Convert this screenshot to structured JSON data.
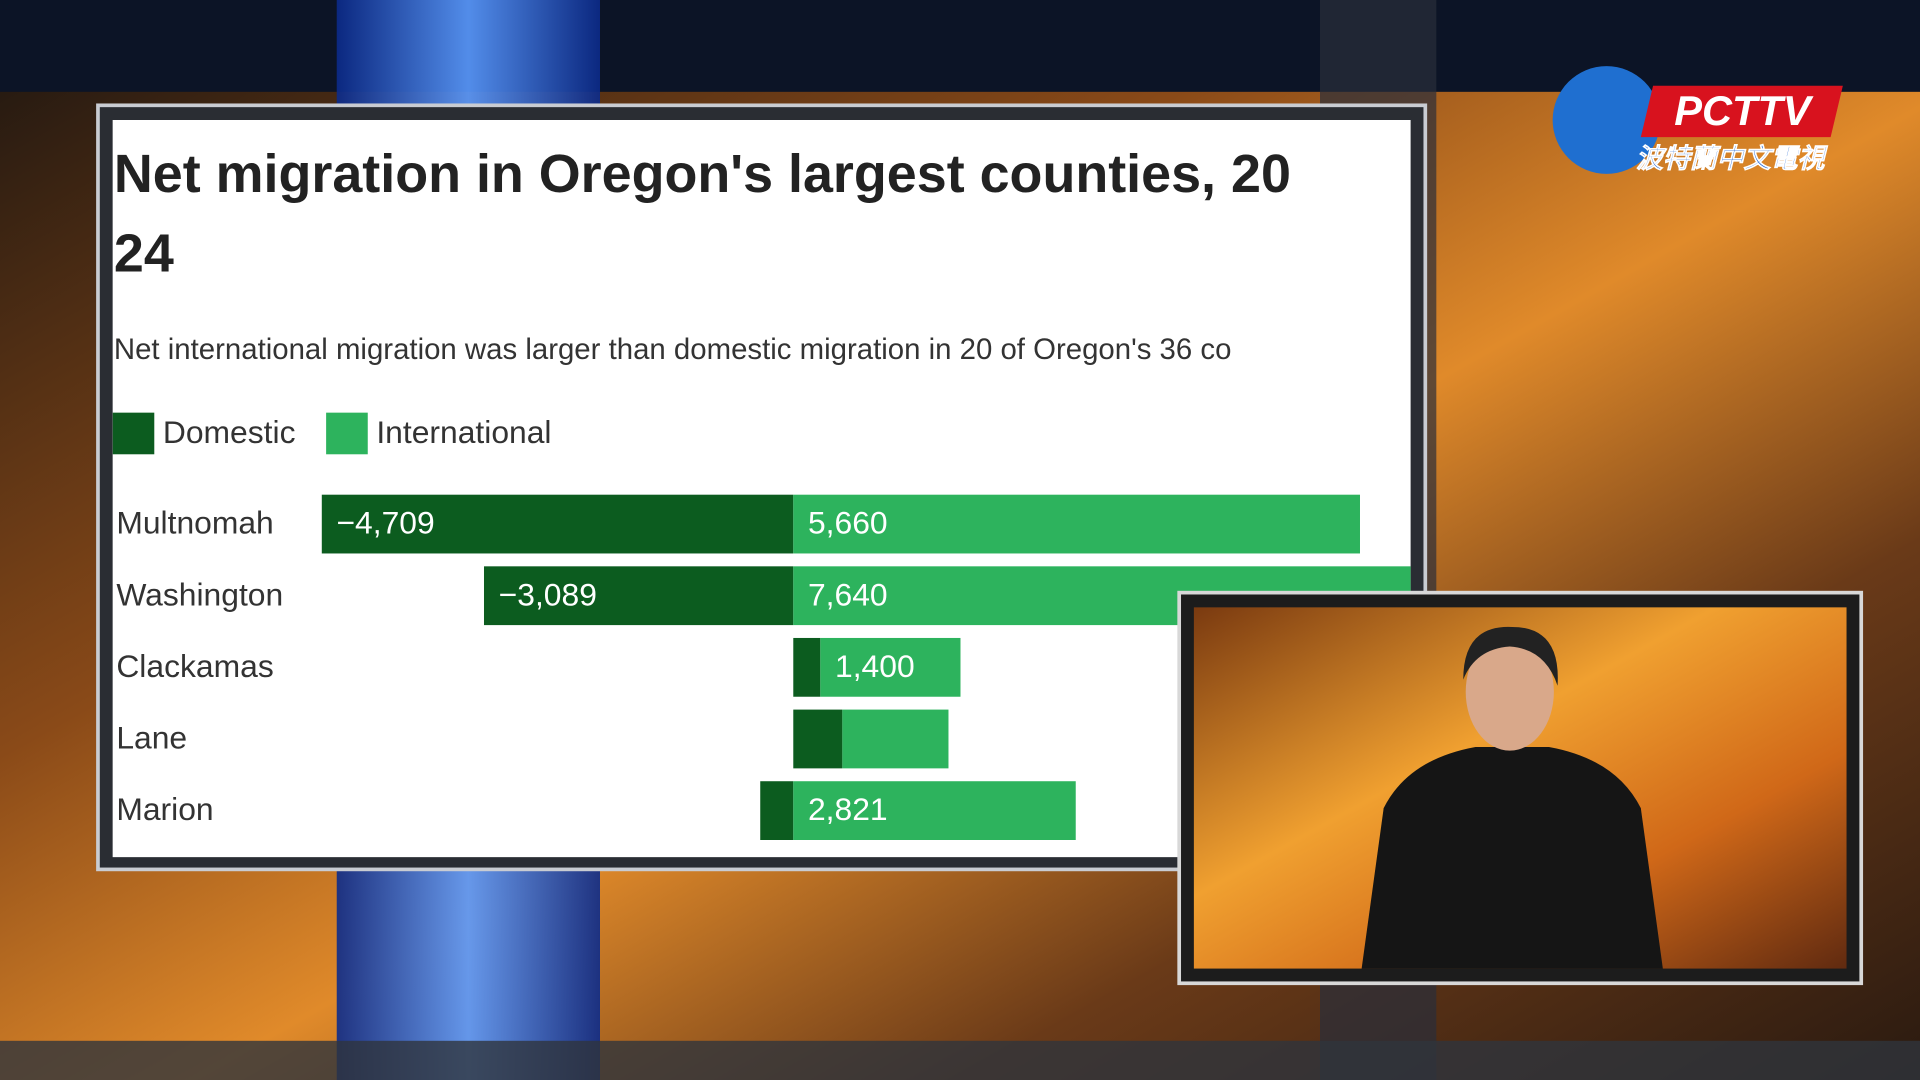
{
  "logo": {
    "name": "PCTTV",
    "subtitle": "波特蘭中文電視"
  },
  "chart_data": {
    "type": "diverging-bar",
    "title": [
      "Net migration in Oregon's largest counties, 20",
      "24"
    ],
    "subtitle": "Net international migration was larger than domestic migration in 20 of Oregon's 36 co",
    "categories": [
      "Multnomah",
      "Washington",
      "Clackamas",
      "Lane",
      "Marion"
    ],
    "series": [
      {
        "name": "Domestic",
        "color": "#0c5c1f",
        "values": [
          -4709,
          -3089,
          270,
          490,
          -330
        ],
        "value_labels": [
          "−4,709",
          "−3,089",
          null,
          null,
          null
        ]
      },
      {
        "name": "International",
        "color": "#2db35d",
        "values": [
          5660,
          7640,
          1400,
          1060,
          2821
        ],
        "value_labels": [
          "5,660",
          "7,640",
          "1,400",
          null,
          "2,821"
        ]
      }
    ],
    "xlim": [
      -5000,
      8000
    ],
    "stacked": true
  }
}
